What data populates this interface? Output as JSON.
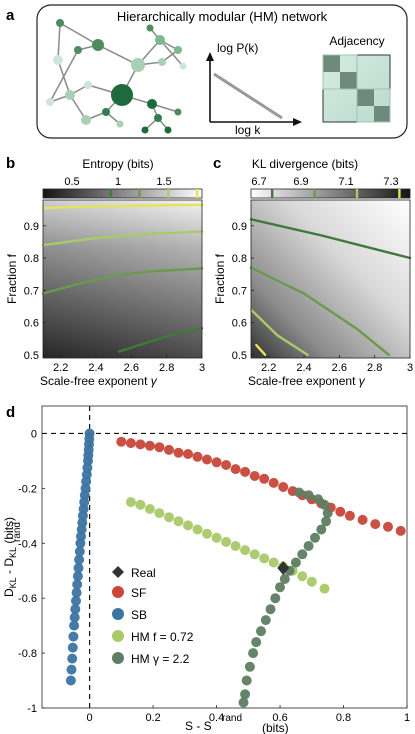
{
  "panel_a": {
    "letter": "a",
    "title": "Hierarchically modular (HM) network",
    "ylabel": "log P(k)",
    "xlabel": "log k",
    "adjacency_label": "Adjacency"
  },
  "panel_b": {
    "letter": "b",
    "cbar_title": "Entropy (bits)",
    "cbar_ticks": [
      "0.5",
      "1",
      "1.5"
    ],
    "ylabel": "Fraction f",
    "xlabel": "Scale-free exponent",
    "xlabel_symbol": "γ",
    "xticks": [
      "2.2",
      "2.4",
      "2.6",
      "2.8",
      "3"
    ],
    "yticks": [
      "0.5",
      "0.6",
      "0.7",
      "0.8",
      "0.9"
    ]
  },
  "panel_c": {
    "letter": "c",
    "cbar_title": "KL divergence (bits)",
    "cbar_ticks": [
      "6.7",
      "6.9",
      "7.1",
      "7.3"
    ],
    "ylabel": "Fraction f",
    "xlabel": "Scale-free exponent",
    "xlabel_symbol": "γ",
    "xticks": [
      "2.2",
      "2.4",
      "2.6",
      "2.8",
      "3"
    ],
    "yticks": [
      "0.5",
      "0.6",
      "0.7",
      "0.8",
      "0.9"
    ]
  },
  "panel_d": {
    "letter": "d",
    "xlabel_main": "S - S",
    "xlabel_sup": "rand",
    "xlabel_unit": "(bits)",
    "ylabel_main": "D",
    "ylabel_sub1": "KL",
    "ylabel_mid": " - D",
    "ylabel_sub2": "KL",
    "ylabel_sup": "rand",
    "ylabel_unit": "(bits)",
    "xticks": [
      "0",
      "0.2",
      "0.4",
      "0.6",
      "0.8",
      "1"
    ],
    "yticks": [
      "0",
      "-0.2",
      "-0.4",
      "-0.6",
      "-0.8",
      "-1"
    ],
    "legend": [
      {
        "label": "Real",
        "color": "#333333",
        "marker": "diamond"
      },
      {
        "label": "SF",
        "color": "#c8473a",
        "marker": "circle"
      },
      {
        "label": "SB",
        "color": "#3d74a2",
        "marker": "circle"
      },
      {
        "label": "HM f = 0.72",
        "color": "#a9c96a",
        "marker": "circle"
      },
      {
        "label": "HM γ = 2.2",
        "color": "#5e7d62",
        "marker": "circle"
      }
    ]
  },
  "chart_data": [
    {
      "type": "heatmap",
      "panel": "b",
      "title": "Entropy (bits)",
      "xlabel": "Scale-free exponent γ",
      "ylabel": "Fraction f",
      "xlim": [
        2.1,
        3.0
      ],
      "ylim": [
        0.49,
        0.98
      ],
      "clim": [
        0.3,
        1.95
      ],
      "colormap": "gray-dark-low",
      "contours": [
        {
          "level": 1.9,
          "color": "#e5e35a",
          "x": [
            2.1,
            2.4,
            2.7,
            3.0
          ],
          "y": [
            0.955,
            0.96,
            0.963,
            0.965
          ]
        },
        {
          "level": 1.6,
          "color": "#a9c96a",
          "x": [
            2.1,
            2.4,
            2.7,
            3.0
          ],
          "y": [
            0.84,
            0.862,
            0.875,
            0.882
          ]
        },
        {
          "level": 1.3,
          "color": "#6b9a4a",
          "x": [
            2.1,
            2.3,
            2.5,
            2.7,
            3.0
          ],
          "y": [
            0.69,
            0.72,
            0.745,
            0.758,
            0.768
          ]
        },
        {
          "level": 1.0,
          "color": "#3f7a3a",
          "x": [
            2.53,
            2.7,
            2.85,
            3.0
          ],
          "y": [
            0.51,
            0.54,
            0.565,
            0.582
          ]
        }
      ]
    },
    {
      "type": "heatmap",
      "panel": "c",
      "title": "KL divergence (bits)",
      "xlabel": "Scale-free exponent γ",
      "ylabel": "Fraction f",
      "xlim": [
        2.1,
        3.0
      ],
      "ylim": [
        0.49,
        0.98
      ],
      "clim": [
        6.6,
        7.35
      ],
      "colormap": "gray-light-low",
      "contours": [
        {
          "level": 6.7,
          "color": "#3f7a3a",
          "x": [
            2.1,
            2.5,
            3.0
          ],
          "y": [
            0.92,
            0.87,
            0.8
          ]
        },
        {
          "level": 6.9,
          "color": "#6b9a4a",
          "x": [
            2.1,
            2.4,
            2.7,
            2.88
          ],
          "y": [
            0.77,
            0.69,
            0.58,
            0.5
          ]
        },
        {
          "level": 7.1,
          "color": "#a9c96a",
          "x": [
            2.1,
            2.25,
            2.42
          ],
          "y": [
            0.64,
            0.56,
            0.5
          ]
        },
        {
          "level": 7.3,
          "color": "#e5e35a",
          "x": [
            2.13,
            2.18
          ],
          "y": [
            0.53,
            0.5
          ]
        }
      ]
    },
    {
      "type": "scatter",
      "panel": "d",
      "xlabel": "S - S rand (bits)",
      "ylabel": "D KL - D KL rand (bits)",
      "xlim": [
        -0.15,
        1.0
      ],
      "ylim": [
        -1.0,
        0.1
      ],
      "series": [
        {
          "name": "SF",
          "color": "#c8473a",
          "points": [
            [
              0.1,
              -0.03
            ],
            [
              0.13,
              -0.035
            ],
            [
              0.16,
              -0.04
            ],
            [
              0.19,
              -0.045
            ],
            [
              0.22,
              -0.05
            ],
            [
              0.25,
              -0.06
            ],
            [
              0.28,
              -0.07
            ],
            [
              0.31,
              -0.075
            ],
            [
              0.34,
              -0.085
            ],
            [
              0.37,
              -0.095
            ],
            [
              0.4,
              -0.105
            ],
            [
              0.43,
              -0.115
            ],
            [
              0.46,
              -0.13
            ],
            [
              0.49,
              -0.14
            ],
            [
              0.52,
              -0.155
            ],
            [
              0.55,
              -0.165
            ],
            [
              0.58,
              -0.18
            ],
            [
              0.61,
              -0.195
            ],
            [
              0.64,
              -0.21
            ],
            [
              0.67,
              -0.225
            ],
            [
              0.7,
              -0.24
            ],
            [
              0.73,
              -0.255
            ],
            [
              0.76,
              -0.27
            ],
            [
              0.79,
              -0.285
            ],
            [
              0.82,
              -0.3
            ],
            [
              0.86,
              -0.315
            ],
            [
              0.9,
              -0.33
            ],
            [
              0.94,
              -0.34
            ],
            [
              0.98,
              -0.355
            ]
          ]
        },
        {
          "name": "SB",
          "color": "#3d74a2",
          "points": [
            [
              0.0,
              0.0
            ],
            [
              -0.001,
              -0.02
            ],
            [
              -0.002,
              -0.04
            ],
            [
              -0.003,
              -0.06
            ],
            [
              -0.004,
              -0.08
            ],
            [
              -0.005,
              -0.1
            ],
            [
              -0.007,
              -0.125
            ],
            [
              -0.009,
              -0.15
            ],
            [
              -0.011,
              -0.175
            ],
            [
              -0.013,
              -0.2
            ],
            [
              -0.015,
              -0.225
            ],
            [
              -0.017,
              -0.25
            ],
            [
              -0.019,
              -0.275
            ],
            [
              -0.021,
              -0.3
            ],
            [
              -0.023,
              -0.325
            ],
            [
              -0.025,
              -0.35
            ],
            [
              -0.027,
              -0.375
            ],
            [
              -0.029,
              -0.4
            ],
            [
              -0.031,
              -0.43
            ],
            [
              -0.033,
              -0.46
            ],
            [
              -0.035,
              -0.49
            ],
            [
              -0.037,
              -0.52
            ],
            [
              -0.039,
              -0.55
            ],
            [
              -0.041,
              -0.58
            ],
            [
              -0.043,
              -0.61
            ],
            [
              -0.045,
              -0.64
            ],
            [
              -0.047,
              -0.67
            ],
            [
              -0.049,
              -0.7
            ],
            [
              -0.051,
              -0.74
            ],
            [
              -0.053,
              -0.78
            ],
            [
              -0.055,
              -0.82
            ],
            [
              -0.057,
              -0.86
            ],
            [
              -0.059,
              -0.9
            ]
          ]
        },
        {
          "name": "HM f = 0.72",
          "color": "#a9c96a",
          "points": [
            [
              0.13,
              -0.25
            ],
            [
              0.16,
              -0.26
            ],
            [
              0.19,
              -0.275
            ],
            [
              0.22,
              -0.29
            ],
            [
              0.25,
              -0.305
            ],
            [
              0.28,
              -0.32
            ],
            [
              0.31,
              -0.335
            ],
            [
              0.34,
              -0.35
            ],
            [
              0.37,
              -0.365
            ],
            [
              0.4,
              -0.38
            ],
            [
              0.43,
              -0.395
            ],
            [
              0.46,
              -0.41
            ],
            [
              0.49,
              -0.425
            ],
            [
              0.52,
              -0.44
            ],
            [
              0.55,
              -0.455
            ],
            [
              0.58,
              -0.47
            ],
            [
              0.61,
              -0.485
            ],
            [
              0.64,
              -0.5
            ],
            [
              0.67,
              -0.52
            ],
            [
              0.7,
              -0.54
            ],
            [
              0.74,
              -0.565
            ]
          ]
        },
        {
          "name": "HM γ = 2.2",
          "color": "#5e7d62",
          "points": [
            [
              0.66,
              -0.215
            ],
            [
              0.69,
              -0.225
            ],
            [
              0.72,
              -0.24
            ],
            [
              0.74,
              -0.26
            ],
            [
              0.75,
              -0.29
            ],
            [
              0.745,
              -0.32
            ],
            [
              0.73,
              -0.35
            ],
            [
              0.71,
              -0.38
            ],
            [
              0.69,
              -0.41
            ],
            [
              0.67,
              -0.44
            ],
            [
              0.65,
              -0.47
            ],
            [
              0.63,
              -0.5
            ],
            [
              0.615,
              -0.53
            ],
            [
              0.6,
              -0.56
            ],
            [
              0.585,
              -0.6
            ],
            [
              0.57,
              -0.64
            ],
            [
              0.555,
              -0.68
            ],
            [
              0.54,
              -0.72
            ],
            [
              0.525,
              -0.76
            ],
            [
              0.515,
              -0.8
            ],
            [
              0.505,
              -0.85
            ],
            [
              0.495,
              -0.9
            ],
            [
              0.49,
              -0.95
            ],
            [
              0.485,
              -0.98
            ]
          ]
        },
        {
          "name": "Real",
          "color": "#333333",
          "marker": "diamond",
          "points": [
            [
              0.61,
              -0.49
            ]
          ]
        }
      ]
    }
  ]
}
